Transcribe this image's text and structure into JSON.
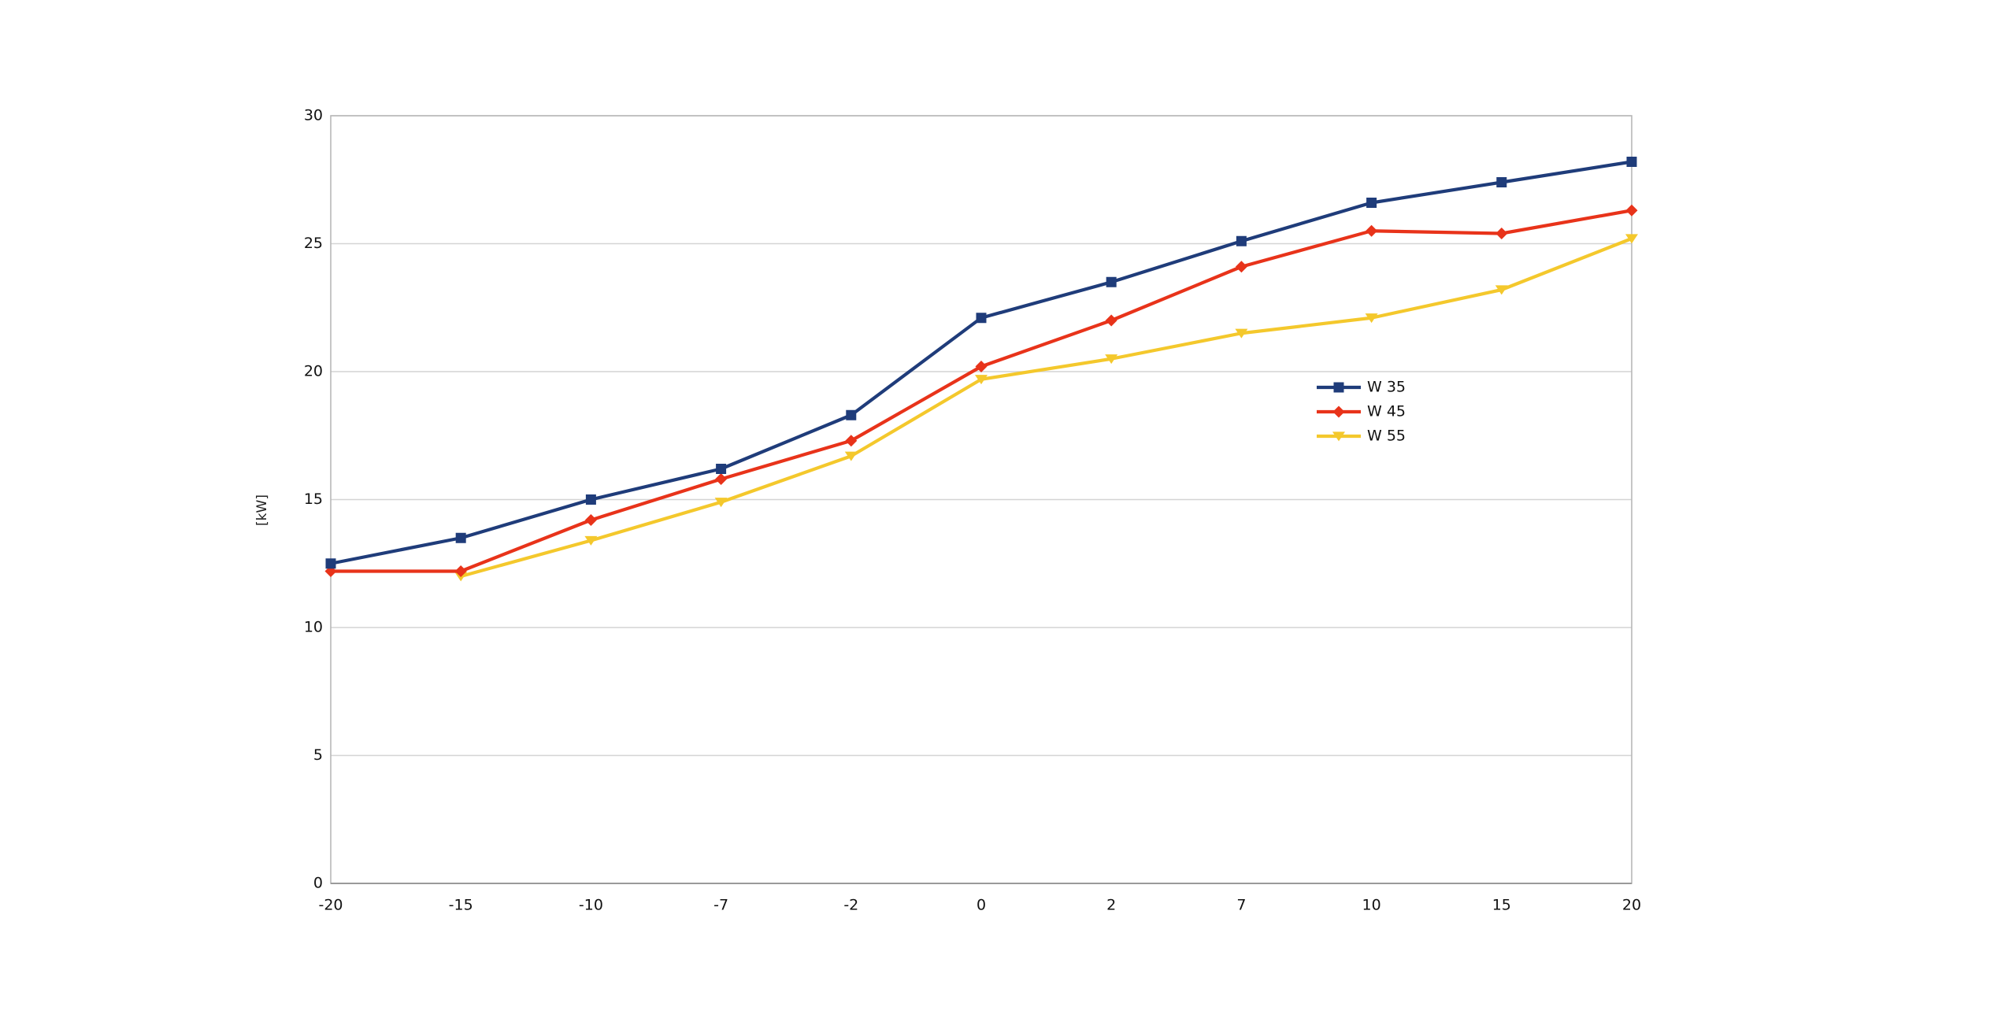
{
  "chart_data": {
    "type": "line",
    "categories": [
      "-20",
      "-15",
      "-10",
      "-7",
      "-2",
      "0",
      "2",
      "7",
      "10",
      "15",
      "20"
    ],
    "ylabel": "[kW]",
    "xlabel": "",
    "ylim": [
      0,
      30
    ],
    "yticks": [
      "0",
      "5",
      "10",
      "15",
      "20",
      "25",
      "30"
    ],
    "grid": true,
    "legend_position": "right-middle",
    "series": [
      {
        "name": "W 35",
        "color": "#1f3c7a",
        "marker": "square",
        "values": [
          12.5,
          13.5,
          15.0,
          16.2,
          18.3,
          22.1,
          23.5,
          25.1,
          26.6,
          27.4,
          28.2
        ]
      },
      {
        "name": "W 45",
        "color": "#e8331a",
        "marker": "diamond",
        "values": [
          12.2,
          12.2,
          14.2,
          15.8,
          17.3,
          20.2,
          22.0,
          24.1,
          25.5,
          25.4,
          26.3
        ]
      },
      {
        "name": "W 55",
        "color": "#f4c82c",
        "marker": "triangle-down",
        "values": [
          null,
          12.0,
          13.4,
          14.9,
          16.7,
          19.7,
          20.5,
          21.5,
          22.1,
          23.2,
          25.2
        ]
      }
    ]
  }
}
